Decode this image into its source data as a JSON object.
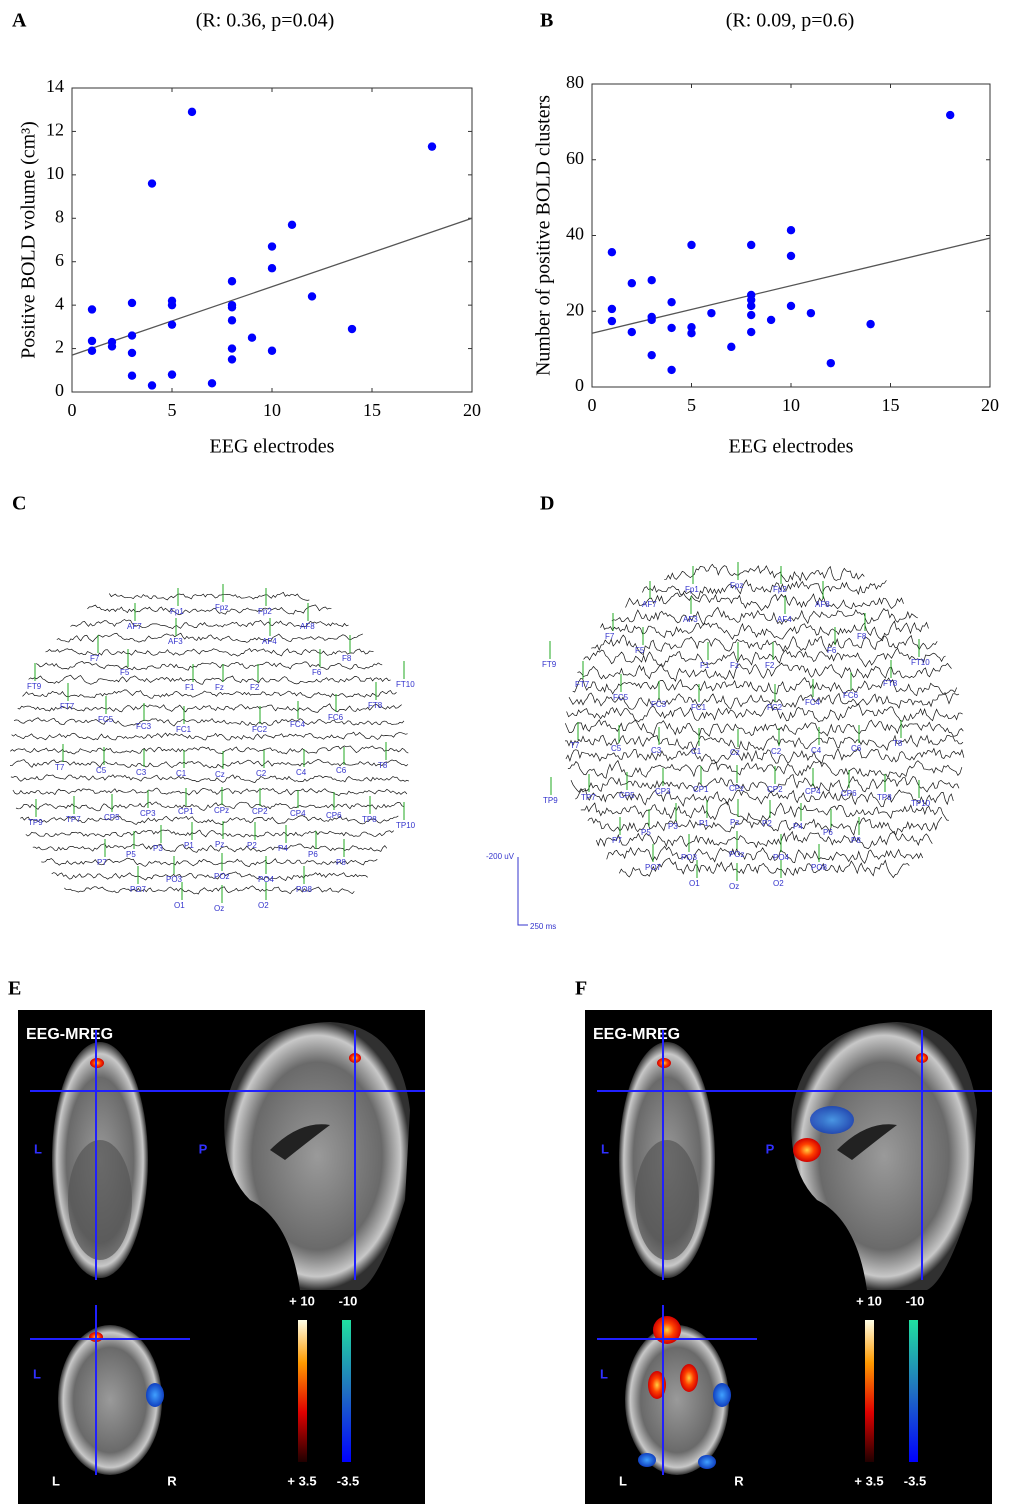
{
  "chart_data": [
    {
      "type": "scatter",
      "panel": "A",
      "title": "(R: 0.36, p=0.04)",
      "x_label": "EEG electrodes",
      "y_label": "Positive BOLD volume (cm³)",
      "x": [
        1,
        1,
        1,
        2,
        2,
        3,
        3,
        3,
        3,
        4,
        4,
        5,
        5,
        5,
        5,
        6,
        7,
        8,
        8,
        8,
        8,
        8,
        8,
        9,
        10,
        10,
        10,
        11,
        12,
        14,
        18
      ],
      "y": [
        3.8,
        2.35,
        1.9,
        2.3,
        2.1,
        4.1,
        2.6,
        1.8,
        0.75,
        9.6,
        0.3,
        4.2,
        4.0,
        3.1,
        0.8,
        12.9,
        0.4,
        5.1,
        4.0,
        3.9,
        3.3,
        2.0,
        1.5,
        2.5,
        6.7,
        5.7,
        1.9,
        7.7,
        4.4,
        2.9,
        11.3
      ],
      "color": "#0000ff",
      "fit": {
        "x": [
          0,
          20
        ],
        "y": [
          1.7,
          8.0
        ],
        "color": "#555555"
      },
      "xlim": [
        0,
        20
      ],
      "ylim": [
        0,
        14
      ],
      "xticks": [
        0,
        5,
        10,
        15,
        20
      ],
      "yticks": [
        0,
        2,
        4,
        6,
        8,
        10,
        12,
        14
      ]
    },
    {
      "type": "scatter",
      "panel": "B",
      "title": "(R: 0.09, p=0.6)",
      "x_label": "EEG electrodes",
      "y_label": "Number of positive BOLD clusters",
      "x": [
        1,
        1,
        1,
        2,
        2,
        3,
        3,
        3,
        3,
        4,
        4,
        4,
        5,
        5,
        5,
        6,
        7,
        8,
        8,
        8,
        8,
        8,
        8,
        9,
        10,
        10,
        10,
        11,
        12,
        14,
        18
      ],
      "y": [
        35.6,
        20.6,
        17.4,
        27.4,
        14.5,
        28.2,
        18.5,
        17.7,
        8.4,
        22.4,
        15.6,
        4.5,
        37.5,
        15.8,
        14.2,
        19.5,
        10.6,
        37.5,
        24.3,
        23,
        21.4,
        19,
        14.5,
        17.7,
        41.4,
        34.6,
        21.4,
        19.5,
        6.3,
        16.6,
        71.8
      ],
      "color": "#0000ff",
      "fit": {
        "x": [
          0,
          20
        ],
        "y": [
          14.2,
          39.3
        ],
        "color": "#555555"
      },
      "xlim": [
        0,
        20
      ],
      "ylim": [
        0,
        80
      ],
      "xticks": [
        0,
        5,
        10,
        15,
        20
      ],
      "yticks": [
        0,
        20,
        40,
        60,
        80
      ]
    }
  ],
  "panels": {
    "C": {
      "label": "C",
      "electrodes": [
        "Fp1",
        "Fpz",
        "Fp2",
        "AF7",
        "AF3",
        "AF4",
        "AF8",
        "F7",
        "F5",
        "F1",
        "Fz",
        "F2",
        "F6",
        "F8",
        "FT9",
        "FT10",
        "FT7",
        "FC5",
        "FC3",
        "FC1",
        "FC2",
        "FC4",
        "FC6",
        "FT8",
        "T7",
        "C5",
        "C3",
        "C1",
        "Cz",
        "C2",
        "C4",
        "C6",
        "T8",
        "TP9",
        "TP7",
        "CP5",
        "CP3",
        "CP1",
        "CPz",
        "CP2",
        "CP4",
        "CP6",
        "TP8",
        "TP10",
        "P7",
        "P5",
        "P3",
        "P1",
        "Pz",
        "P2",
        "P4",
        "P6",
        "P8",
        "PO7",
        "PO3",
        "POz",
        "PO4",
        "PO8",
        "O1",
        "Oz",
        "O2"
      ],
      "scale_voltage": "-200 uV",
      "scale_time": "250 ms"
    },
    "D": {
      "label": "D",
      "electrodes": [
        "Fp1",
        "Fpz",
        "Fp2",
        "AF7",
        "AF3",
        "AF4",
        "AF8",
        "F7",
        "F5",
        "F1",
        "Fz",
        "F2",
        "F6",
        "F8",
        "FT9",
        "FT10",
        "FT7",
        "FC5",
        "FC3",
        "FC1",
        "FC2",
        "FC4",
        "FC6",
        "FT8",
        "T7",
        "C5",
        "C3",
        "C1",
        "Cz",
        "C2",
        "C4",
        "C6",
        "T8",
        "TP9",
        "TP7",
        "CP5",
        "CP3",
        "CP1",
        "CPz",
        "CP2",
        "CP4",
        "CP6",
        "TP8",
        "TP10",
        "P7",
        "P5",
        "P3",
        "P1",
        "Pz",
        "P2",
        "P4",
        "P6",
        "P8",
        "PO7",
        "PO3",
        "POz",
        "PO4",
        "PO8",
        "O1",
        "Oz",
        "O2"
      ]
    },
    "E": {
      "label": "E",
      "title": "EEG-MREG",
      "orientation": [
        "L",
        "P",
        "L",
        "L",
        "R"
      ],
      "colorbar": {
        "pos_max": "+ 10",
        "neg_max": "-10",
        "pos_min": "+ 3.5",
        "neg_min": "-3.5"
      }
    },
    "F": {
      "label": "F",
      "title": "EEG-MREG",
      "orientation": [
        "L",
        "P",
        "L",
        "L",
        "R"
      ],
      "colorbar": {
        "pos_max": "+ 10",
        "neg_max": "-10",
        "pos_min": "+ 3.5",
        "neg_min": "-3.5"
      }
    }
  }
}
